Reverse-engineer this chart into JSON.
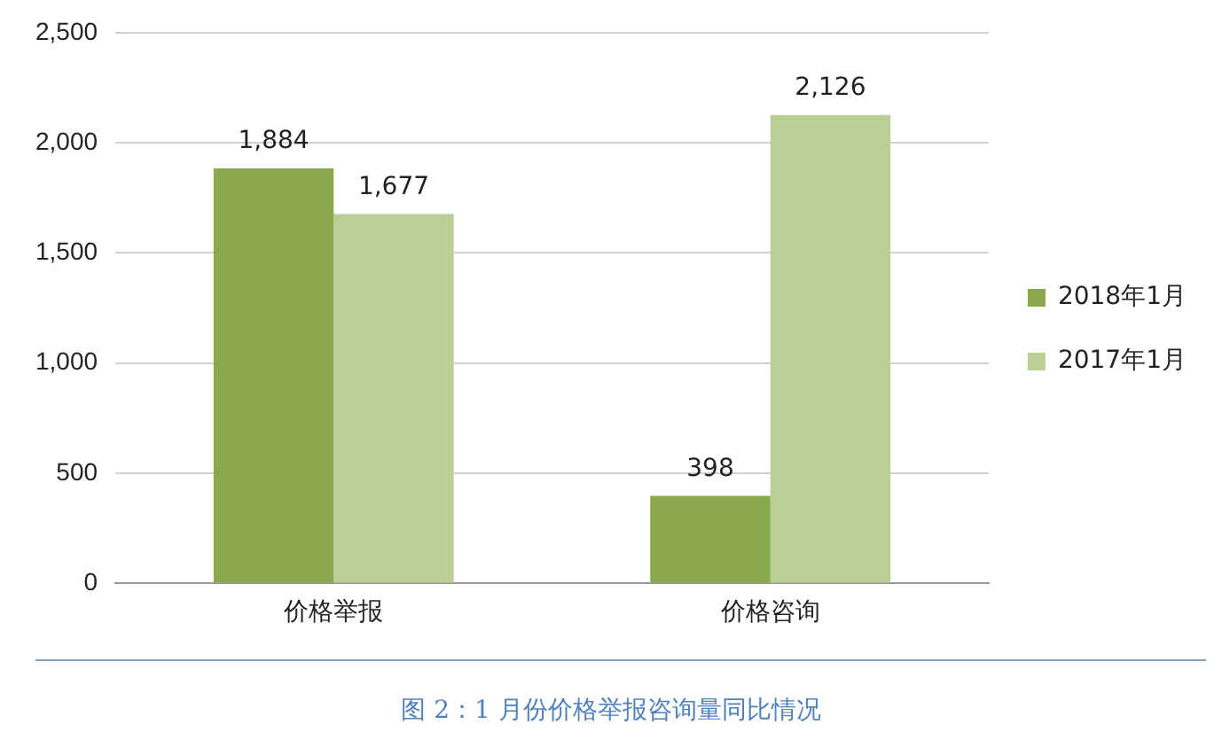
{
  "chart_data": {
    "type": "bar",
    "categories": [
      "价格举报",
      "价格咨询"
    ],
    "series": [
      {
        "name": "2018年1月",
        "color": "#8aa84c",
        "values": [
          1884,
          398
        ],
        "value_labels": [
          "1,884",
          "398"
        ]
      },
      {
        "name": "2017年1月",
        "color": "#bbcf95",
        "values": [
          1677,
          2126
        ],
        "value_labels": [
          "1,677",
          "2,126"
        ]
      }
    ],
    "ylim": [
      0,
      2500
    ],
    "yticks": [
      0,
      {
        "value": 500,
        "label": "500"
      },
      {
        "value": 1000,
        "label": "1,000"
      },
      {
        "value": 1500,
        "label": "1,500"
      },
      {
        "value": 2000,
        "label": "2,000"
      },
      {
        "value": 2500,
        "label": "2,500"
      }
    ],
    "grid": "y",
    "legend": "right",
    "annotations": [
      "图 2：1 月份价格举报咨询量同比情况"
    ]
  }
}
